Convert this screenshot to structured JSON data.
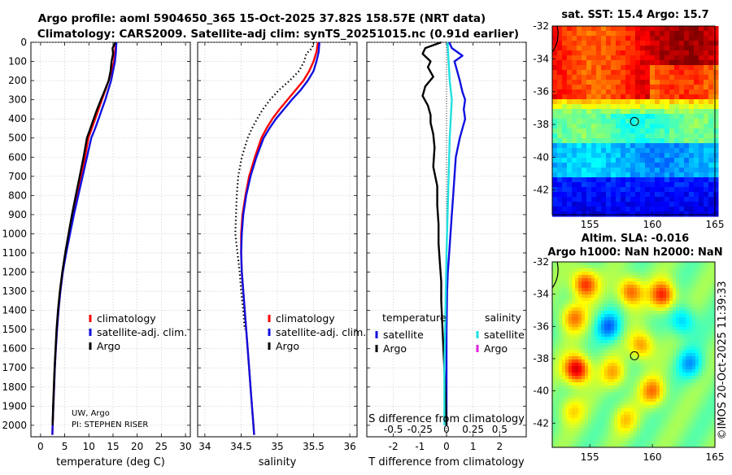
{
  "title": {
    "line1": "Argo profile: aoml 5904650_365 15-Oct-2025 37.82S 158.57E (NRT data)",
    "line2": "Climatology: CARS2009. Satellite-adj clim: synTS_20251015.nc (0.91d earlier)"
  },
  "credits": {
    "line1": "UW, Argo",
    "line2": "PI: STEPHEN RISER"
  },
  "timestamp": "©IMOS 20-Oct-2025 11:39:33",
  "colors": {
    "climatology": "#ff0000",
    "satellite": "#1010e0",
    "argo": "#000000",
    "cyan": "#20e0e0",
    "magenta": "#e020e0"
  },
  "chart_data": [
    {
      "type": "line",
      "id": "temperature",
      "xlabel": "temperature (deg C)",
      "ylabel": "",
      "xlim": [
        -2,
        31
      ],
      "ylim": [
        2060,
        0
      ],
      "xticks": [
        0,
        5,
        10,
        15,
        20,
        25,
        30
      ],
      "yticks": [
        0,
        100,
        200,
        300,
        400,
        500,
        600,
        700,
        800,
        900,
        1000,
        1100,
        1200,
        1300,
        1400,
        1500,
        1600,
        1700,
        1800,
        1900,
        2000
      ],
      "legend": [
        "climatology",
        "satellite-adj. clim.",
        "Argo"
      ],
      "series": [
        {
          "name": "climatology",
          "color": "#ff0000",
          "style": "solid",
          "points": [
            [
              15.6,
              0
            ],
            [
              15.4,
              50
            ],
            [
              15.2,
              100
            ],
            [
              14.7,
              150
            ],
            [
              14.1,
              200
            ],
            [
              13.4,
              250
            ],
            [
              12.7,
              300
            ],
            [
              12.0,
              350
            ],
            [
              11.3,
              400
            ],
            [
              10.6,
              450
            ],
            [
              9.9,
              500
            ],
            [
              9.2,
              600
            ],
            [
              8.4,
              700
            ],
            [
              7.6,
              800
            ],
            [
              6.8,
              900
            ],
            [
              6.0,
              1000
            ],
            [
              5.2,
              1100
            ],
            [
              4.6,
              1200
            ],
            [
              4.1,
              1300
            ],
            [
              3.7,
              1400
            ],
            [
              3.4,
              1500
            ],
            [
              3.15,
              1600
            ],
            [
              2.95,
              1700
            ],
            [
              2.8,
              1800
            ],
            [
              2.65,
              1900
            ],
            [
              2.5,
              2000
            ],
            [
              2.45,
              2050
            ]
          ]
        },
        {
          "name": "satellite-adj. clim.",
          "color": "#1010e0",
          "style": "solid",
          "points": [
            [
              15.7,
              0
            ],
            [
              15.6,
              50
            ],
            [
              15.4,
              100
            ],
            [
              15.0,
              150
            ],
            [
              14.6,
              200
            ],
            [
              14.0,
              250
            ],
            [
              13.4,
              300
            ],
            [
              12.7,
              350
            ],
            [
              12.0,
              400
            ],
            [
              11.3,
              450
            ],
            [
              10.5,
              500
            ],
            [
              9.6,
              600
            ],
            [
              8.7,
              700
            ],
            [
              7.8,
              800
            ],
            [
              6.9,
              900
            ],
            [
              6.1,
              1000
            ],
            [
              5.3,
              1100
            ],
            [
              4.6,
              1200
            ],
            [
              4.1,
              1300
            ],
            [
              3.7,
              1400
            ],
            [
              3.4,
              1500
            ],
            [
              3.15,
              1600
            ],
            [
              2.95,
              1700
            ],
            [
              2.8,
              1800
            ],
            [
              2.65,
              1900
            ],
            [
              2.5,
              2000
            ],
            [
              2.45,
              2050
            ]
          ]
        },
        {
          "name": "Argo",
          "color": "#000000",
          "style": "solid",
          "points": [
            [
              15.5,
              0
            ],
            [
              14.9,
              30
            ],
            [
              15.0,
              60
            ],
            [
              14.7,
              100
            ],
            [
              14.5,
              150
            ],
            [
              14.1,
              200
            ],
            [
              13.3,
              250
            ],
            [
              12.5,
              300
            ],
            [
              11.7,
              350
            ],
            [
              11.0,
              400
            ],
            [
              10.3,
              450
            ],
            [
              9.6,
              500
            ],
            [
              8.9,
              600
            ],
            [
              8.1,
              700
            ],
            [
              7.3,
              800
            ],
            [
              6.5,
              900
            ],
            [
              5.8,
              1000
            ],
            [
              5.1,
              1100
            ],
            [
              4.5,
              1200
            ],
            [
              4.0,
              1300
            ],
            [
              3.6,
              1400
            ],
            [
              3.3,
              1500
            ],
            [
              3.1,
              1600
            ],
            [
              2.9,
              1700
            ],
            [
              2.75,
              1800
            ],
            [
              2.6,
              1900
            ],
            [
              2.5,
              2000
            ]
          ]
        }
      ]
    },
    {
      "type": "line",
      "id": "salinity",
      "xlabel": "salinity",
      "ylabel": "",
      "xlim": [
        33.9,
        36.1
      ],
      "ylim": [
        2060,
        0
      ],
      "xticks": [
        34,
        34.5,
        35,
        35.5,
        36
      ],
      "legend": [
        "climatology",
        "satellite-adj. clim.",
        "Argo"
      ],
      "series": [
        {
          "name": "climatology",
          "color": "#ff0000",
          "style": "solid",
          "points": [
            [
              35.56,
              0
            ],
            [
              35.54,
              50
            ],
            [
              35.5,
              100
            ],
            [
              35.44,
              150
            ],
            [
              35.36,
              200
            ],
            [
              35.25,
              250
            ],
            [
              35.14,
              300
            ],
            [
              35.03,
              350
            ],
            [
              34.93,
              400
            ],
            [
              34.85,
              450
            ],
            [
              34.78,
              500
            ],
            [
              34.69,
              600
            ],
            [
              34.61,
              700
            ],
            [
              34.56,
              800
            ],
            [
              34.52,
              900
            ],
            [
              34.5,
              1000
            ],
            [
              34.5,
              1100
            ],
            [
              34.51,
              1200
            ],
            [
              34.53,
              1300
            ],
            [
              34.55,
              1400
            ],
            [
              34.57,
              1500
            ],
            [
              34.59,
              1600
            ],
            [
              34.61,
              1700
            ],
            [
              34.63,
              1800
            ],
            [
              34.65,
              1900
            ],
            [
              34.67,
              2000
            ],
            [
              34.68,
              2050
            ]
          ]
        },
        {
          "name": "satellite-adj. clim.",
          "color": "#1010e0",
          "style": "solid",
          "points": [
            [
              35.58,
              0
            ],
            [
              35.57,
              50
            ],
            [
              35.54,
              100
            ],
            [
              35.5,
              150
            ],
            [
              35.42,
              200
            ],
            [
              35.32,
              250
            ],
            [
              35.2,
              300
            ],
            [
              35.09,
              350
            ],
            [
              34.98,
              400
            ],
            [
              34.89,
              450
            ],
            [
              34.81,
              500
            ],
            [
              34.71,
              600
            ],
            [
              34.63,
              700
            ],
            [
              34.57,
              800
            ],
            [
              34.53,
              900
            ],
            [
              34.51,
              1000
            ],
            [
              34.5,
              1100
            ],
            [
              34.51,
              1200
            ],
            [
              34.53,
              1300
            ],
            [
              34.55,
              1400
            ],
            [
              34.57,
              1500
            ],
            [
              34.59,
              1600
            ],
            [
              34.61,
              1700
            ],
            [
              34.63,
              1800
            ],
            [
              34.65,
              1900
            ],
            [
              34.67,
              2000
            ],
            [
              34.68,
              2050
            ]
          ]
        },
        {
          "name": "Argo",
          "color": "#000000",
          "style": "dotted",
          "points": [
            [
              35.5,
              0
            ],
            [
              35.48,
              30
            ],
            [
              35.4,
              60
            ],
            [
              35.37,
              100
            ],
            [
              35.3,
              150
            ],
            [
              35.17,
              200
            ],
            [
              35.02,
              250
            ],
            [
              34.9,
              300
            ],
            [
              34.8,
              350
            ],
            [
              34.72,
              400
            ],
            [
              34.65,
              450
            ],
            [
              34.59,
              500
            ],
            [
              34.51,
              600
            ],
            [
              34.46,
              700
            ],
            [
              34.44,
              800
            ],
            [
              34.43,
              900
            ],
            [
              34.42,
              1000
            ],
            [
              34.45,
              1100
            ],
            [
              34.48,
              1200
            ],
            [
              34.5,
              1300
            ],
            [
              34.53,
              1400
            ],
            [
              34.55,
              1500
            ]
          ]
        }
      ]
    },
    {
      "type": "line",
      "id": "difference",
      "xlabel": "T difference from climatology",
      "xlabel2": "S difference from climatology",
      "ylabel": "",
      "xlim": [
        -3,
        3
      ],
      "ylim": [
        2060,
        0
      ],
      "xticks": [
        -2,
        -1,
        0,
        1,
        2
      ],
      "xtick_labels": [
        "-2",
        "-1",
        "0",
        "1",
        "2"
      ],
      "sticks": [
        -0.5,
        -0.25,
        0,
        0.25,
        0.5
      ],
      "stick_labels": [
        "-0.5",
        "-0.25",
        "0",
        "0.25",
        "0.5"
      ],
      "s_scale": 4,
      "legend_temperature_title": "temperature",
      "legend_salinity_title": "salinity",
      "legend_temperature": [
        "satellite",
        "Argo"
      ],
      "legend_salinity": [
        "satellite",
        "Argo"
      ],
      "series": [
        {
          "name": "T satellite",
          "color": "#1010e0",
          "style": "solid",
          "points": [
            [
              0.1,
              0
            ],
            [
              0.2,
              30
            ],
            [
              0.6,
              70
            ],
            [
              0.3,
              100
            ],
            [
              0.4,
              150
            ],
            [
              0.5,
              200
            ],
            [
              0.6,
              260
            ],
            [
              0.7,
              300
            ],
            [
              0.65,
              350
            ],
            [
              0.7,
              400
            ],
            [
              0.5,
              500
            ],
            [
              0.35,
              600
            ],
            [
              0.3,
              700
            ],
            [
              0.25,
              800
            ],
            [
              0.2,
              900
            ],
            [
              0.15,
              1000
            ],
            [
              0.1,
              1100
            ],
            [
              0.05,
              1200
            ],
            [
              0.02,
              1300
            ],
            [
              0.0,
              1500
            ],
            [
              0.0,
              2000
            ]
          ]
        },
        {
          "name": "T Argo",
          "color": "#000000",
          "style": "solid",
          "points": [
            [
              -0.2,
              0
            ],
            [
              -0.8,
              30
            ],
            [
              -0.9,
              60
            ],
            [
              -0.6,
              100
            ],
            [
              -0.7,
              130
            ],
            [
              -0.5,
              180
            ],
            [
              -0.8,
              230
            ],
            [
              -0.9,
              280
            ],
            [
              -0.7,
              330
            ],
            [
              -0.6,
              380
            ],
            [
              -0.6,
              420
            ],
            [
              -0.5,
              480
            ],
            [
              -0.45,
              550
            ],
            [
              -0.5,
              650
            ],
            [
              -0.35,
              750
            ],
            [
              -0.35,
              850
            ],
            [
              -0.3,
              950
            ],
            [
              -0.3,
              1050
            ],
            [
              -0.25,
              1150
            ],
            [
              -0.2,
              1250
            ],
            [
              -0.2,
              1350
            ],
            [
              -0.15,
              1500
            ],
            [
              -0.1,
              1650
            ],
            [
              -0.05,
              1800
            ],
            [
              0.0,
              2000
            ]
          ]
        },
        {
          "name": "S satellite",
          "color": "#20e0e0",
          "style": "solid",
          "points": [
            [
              0.01,
              0
            ],
            [
              0.02,
              100
            ],
            [
              0.03,
              200
            ],
            [
              0.05,
              300
            ],
            [
              0.04,
              400
            ],
            [
              0.03,
              500
            ],
            [
              0.02,
              700
            ],
            [
              0.01,
              900
            ],
            [
              0.0,
              1100
            ],
            [
              -0.01,
              1400
            ],
            [
              -0.02,
              1700
            ],
            [
              -0.02,
              2000
            ]
          ]
        }
      ]
    },
    {
      "type": "heatmap",
      "id": "sst_map",
      "title": "sat. SST: 15.4 Argo: 15.7",
      "xlim": [
        152,
        165
      ],
      "ylim": [
        -43.5,
        -32
      ],
      "xticks": [
        155,
        160,
        165
      ],
      "yticks": [
        -32,
        -34,
        -36,
        -38,
        -40,
        -42
      ],
      "marker": {
        "lon": 158.57,
        "lat": -37.82
      }
    },
    {
      "type": "heatmap",
      "id": "sla_map",
      "title": "Altim. SLA: -0.016",
      "title2": "Argo h1000: NaN h2000: NaN",
      "xlim": [
        152,
        165
      ],
      "ylim": [
        -43.5,
        -32
      ],
      "xticks": [
        155,
        160,
        165
      ],
      "yticks": [
        -32,
        -34,
        -36,
        -38,
        -40,
        -42
      ],
      "marker": {
        "lon": 158.57,
        "lat": -37.82
      }
    }
  ]
}
